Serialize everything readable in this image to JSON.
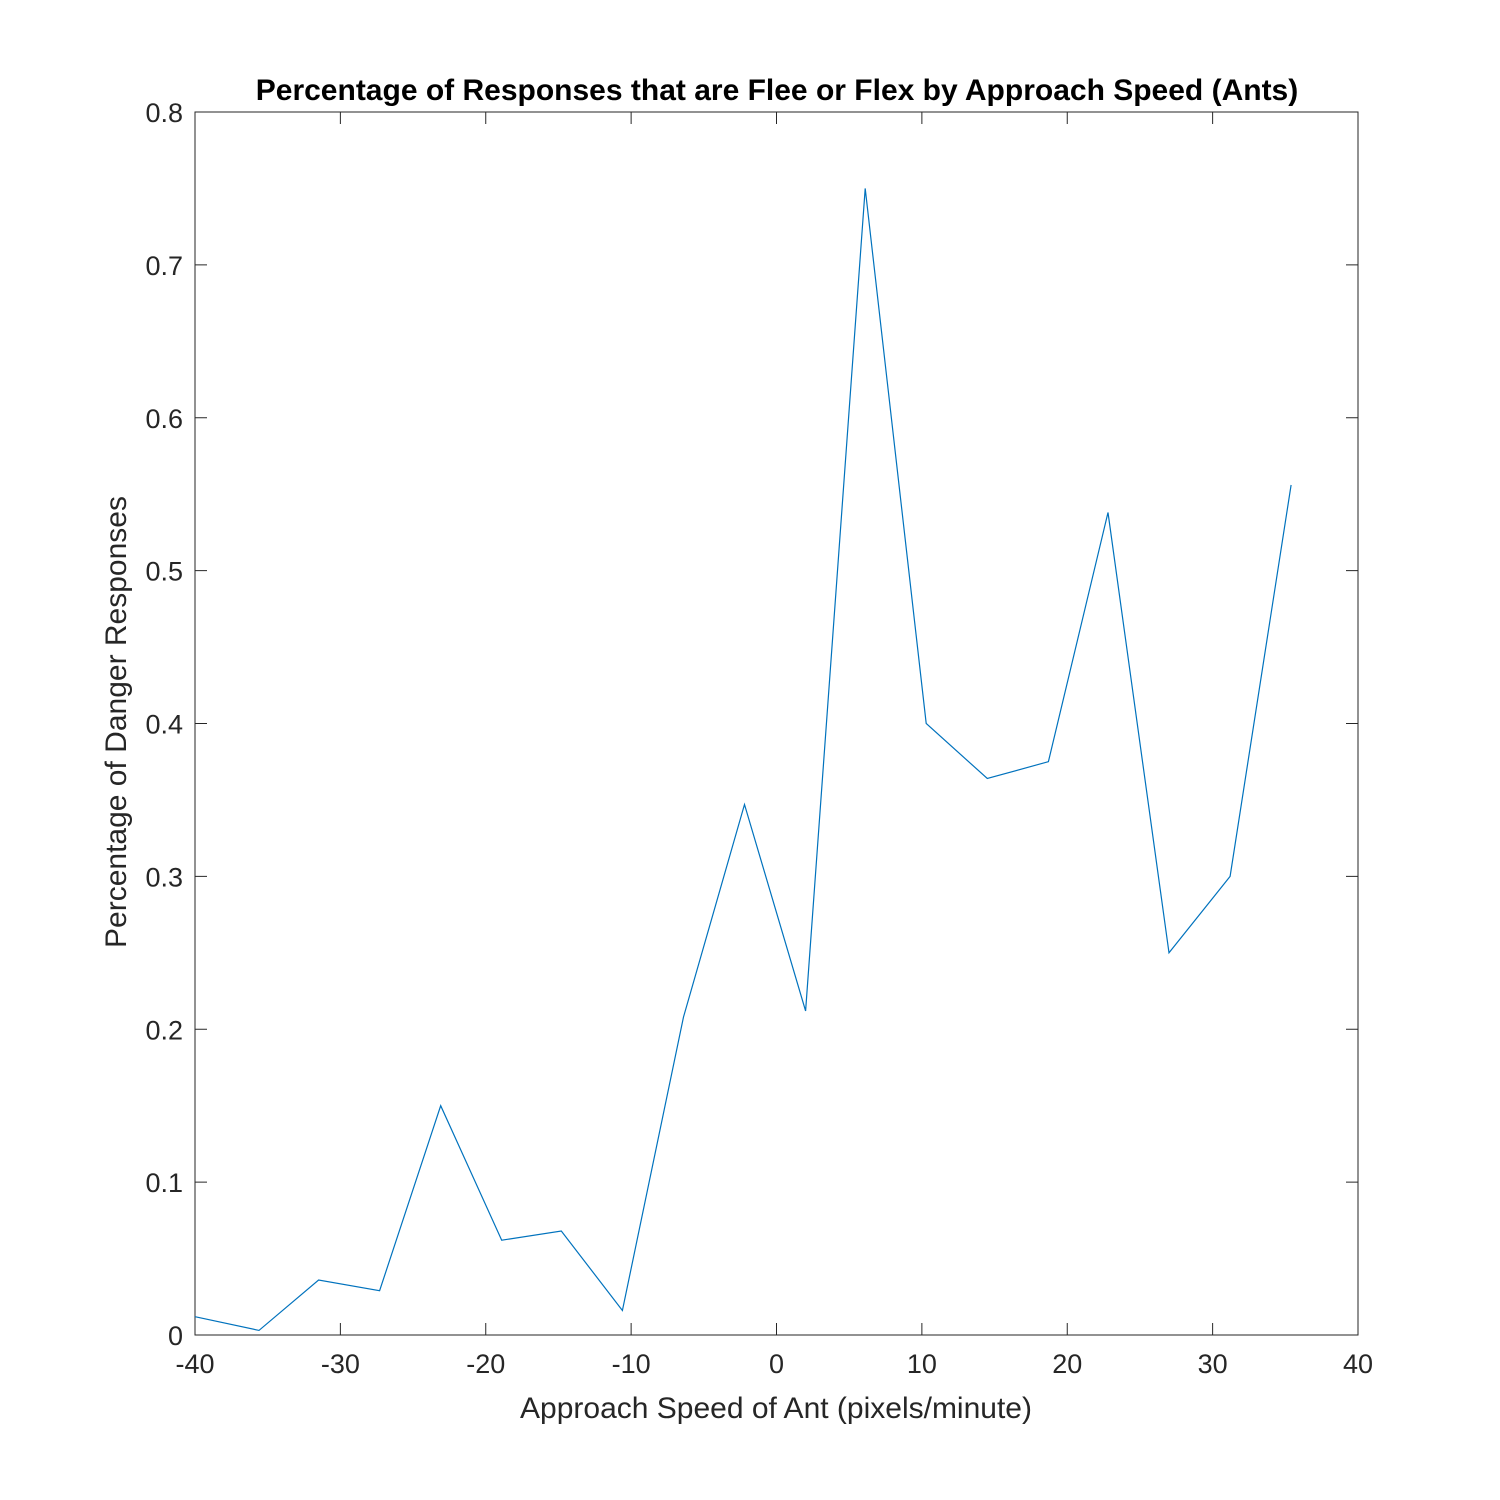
{
  "chart_data": {
    "type": "line",
    "title": "Percentage of Responses that are Flee or Flex by Approach Speed (Ants)",
    "xlabel": "Approach Speed of Ant (pixels/minute)",
    "ylabel": "Percentage of Danger Responses",
    "xlim": [
      -40,
      40
    ],
    "ylim": [
      0,
      0.8
    ],
    "xticks": [
      -40,
      -30,
      -20,
      -10,
      0,
      10,
      20,
      30,
      40
    ],
    "xtick_labels": [
      "-40",
      "-30",
      "-20",
      "-10",
      "0",
      "10",
      "20",
      "30",
      "40"
    ],
    "yticks": [
      0,
      0.1,
      0.2,
      0.3,
      0.4,
      0.5,
      0.6,
      0.7,
      0.8
    ],
    "ytick_labels": [
      "0",
      "0.1",
      "0.2",
      "0.3",
      "0.4",
      "0.5",
      "0.6",
      "0.7",
      "0.8"
    ],
    "grid": false,
    "series": [
      {
        "color": "#0072BD",
        "x": [
          -40,
          -35.6,
          -31.5,
          -27.3,
          -23.1,
          -18.9,
          -14.8,
          -10.6,
          -6.4,
          -2.2,
          2.0,
          6.1,
          10.3,
          14.5,
          18.7,
          22.8,
          27.0,
          31.2,
          35.4
        ],
        "y": [
          0.012,
          0.003,
          0.036,
          0.029,
          0.15,
          0.062,
          0.068,
          0.016,
          0.208,
          0.347,
          0.212,
          0.75,
          0.4,
          0.364,
          0.375,
          0.538,
          0.25,
          0.3,
          0.556
        ]
      }
    ]
  }
}
